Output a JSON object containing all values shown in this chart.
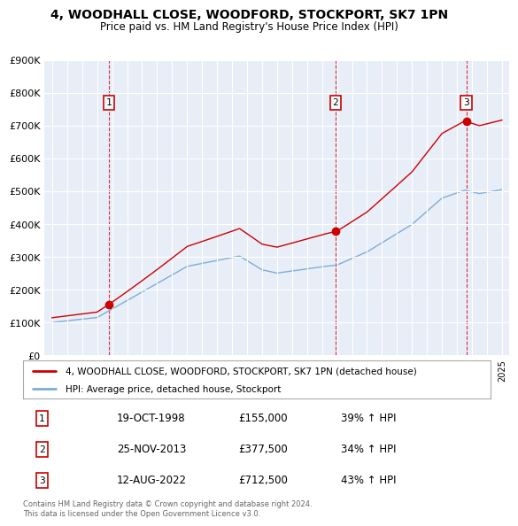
{
  "title": "4, WOODHALL CLOSE, WOODFORD, STOCKPORT, SK7 1PN",
  "subtitle": "Price paid vs. HM Land Registry's House Price Index (HPI)",
  "ylim": [
    0,
    900000
  ],
  "yticks": [
    0,
    100000,
    200000,
    300000,
    400000,
    500000,
    600000,
    700000,
    800000,
    900000
  ],
  "ytick_labels": [
    "£0",
    "£100K",
    "£200K",
    "£300K",
    "£400K",
    "£500K",
    "£600K",
    "£700K",
    "£800K",
    "£900K"
  ],
  "chart_bg": "#e8eef8",
  "fig_bg": "#ffffff",
  "grid_color": "#ffffff",
  "sale_color": "#cc0000",
  "hpi_color": "#7dadd4",
  "sale_label": "4, WOODHALL CLOSE, WOODFORD, STOCKPORT, SK7 1PN (detached house)",
  "hpi_label": "HPI: Average price, detached house, Stockport",
  "transactions": [
    {
      "date": "19-OCT-1998",
      "price": 155000,
      "pct": "39%",
      "label": "1"
    },
    {
      "date": "25-NOV-2013",
      "price": 377500,
      "pct": "34%",
      "label": "2"
    },
    {
      "date": "12-AUG-2022",
      "price": 712500,
      "pct": "43%",
      "label": "3"
    }
  ],
  "footer": "Contains HM Land Registry data © Crown copyright and database right 2024.\nThis data is licensed under the Open Government Licence v3.0.",
  "x_start_year": 1995,
  "x_end_year": 2025,
  "t1": 1998.79,
  "t2": 2013.9,
  "t3": 2022.62,
  "sale1": 155000,
  "sale2": 377500,
  "sale3": 712500
}
